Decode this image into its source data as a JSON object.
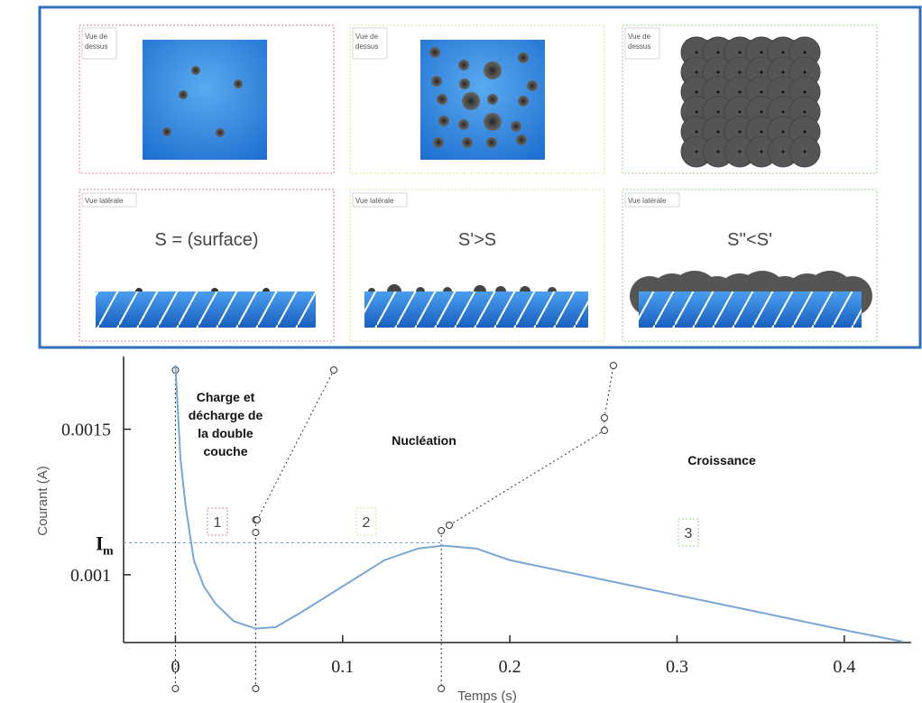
{
  "panels": [
    {
      "top_label": [
        "Vue de",
        "dessus"
      ],
      "side_label": "Vue latérale",
      "caption": "S = (surface)"
    },
    {
      "top_label": [
        "Vue de",
        "dessus"
      ],
      "side_label": "Vue latérale",
      "caption": "S'>S"
    },
    {
      "top_label": [
        "Vue de",
        "dessus"
      ],
      "side_label": "Vue latérale",
      "caption": "S''<S'"
    }
  ],
  "chart_data": {
    "type": "line",
    "x_label": "Temps (s)",
    "y_label": "Courant (A)",
    "x": [
      0,
      0.003,
      0.006,
      0.011,
      0.017,
      0.024,
      0.035,
      0.048,
      0.06,
      0.075,
      0.1,
      0.125,
      0.145,
      0.16,
      0.18,
      0.2,
      0.25,
      0.3,
      0.35,
      0.4,
      0.435
    ],
    "series": [
      {
        "color": "#7aa6d6",
        "values": [
          0.00172,
          0.0014,
          0.00124,
          0.00105,
          0.00096,
          0.0009,
          0.00084,
          0.000815,
          0.00082,
          0.00087,
          0.00096,
          0.00105,
          0.00109,
          0.0011,
          0.00109,
          0.00105,
          0.00099,
          0.00093,
          0.00087,
          0.00081,
          0.00077
        ]
      }
    ],
    "xlim": [
      -0.031,
      0.44
    ],
    "ylim": [
      0.000767,
      0.00175
    ],
    "xticks": [
      0,
      0.1,
      0.2,
      0.3,
      0.4
    ],
    "yticks": [
      0.001,
      0.0015
    ],
    "im": {
      "label": "I",
      "subscript": "m",
      "value": 0.00111
    },
    "vlines": [
      0,
      0.048,
      0.159
    ],
    "phase_labels": [
      [
        "Charge et",
        "décharge de",
        "la double",
        "couche"
      ],
      [
        "Nucléation"
      ],
      [
        "Croissance"
      ]
    ],
    "stage_labels": [
      "1",
      "2",
      "3"
    ]
  }
}
